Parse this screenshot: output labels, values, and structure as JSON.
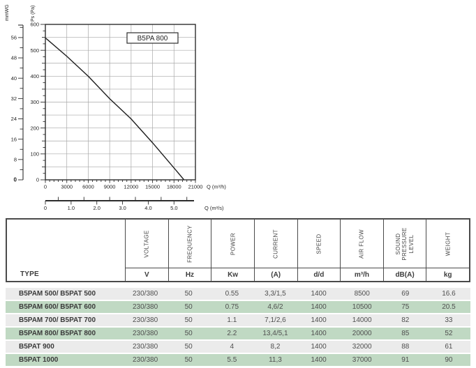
{
  "chart_data": {
    "type": "line",
    "title": "B5PA 800",
    "xlabel": "Q (m³/h)",
    "x2label": "Q (m³/s)",
    "ylabel": "Ps (Pa)",
    "y2label": "mmWG",
    "grid": true,
    "xlim": [
      0,
      21000
    ],
    "ylim": [
      0,
      600
    ],
    "x_tick_major": 3000,
    "x_tick_minor": 600,
    "y_label_step": 100,
    "y_grid_step": 50,
    "y_tick_minor": 25,
    "y2_ticks": [
      0,
      8,
      16,
      24,
      32,
      40,
      48,
      56
    ],
    "y2_tick_minor": 4,
    "y2_unit_in_pa": 9.80665,
    "x2_ticks": [
      "0",
      "1.0",
      "2.0",
      "3.0",
      "4.0",
      "5.0"
    ],
    "x2_half_ticks": [
      0.5,
      1.5,
      2.5,
      3.5,
      4.5,
      5.5
    ],
    "x2_factor": 3600,
    "series": [
      {
        "name": "B5PA 800",
        "points": [
          [
            0,
            548
          ],
          [
            3000,
            477
          ],
          [
            6000,
            400
          ],
          [
            9000,
            313
          ],
          [
            12000,
            235
          ],
          [
            15000,
            143
          ],
          [
            18000,
            46
          ],
          [
            19400,
            0
          ]
        ]
      }
    ]
  },
  "table": {
    "type_header": "TYPE",
    "columns": [
      {
        "key": "voltage",
        "label": "VOLTAGE",
        "unit": "V"
      },
      {
        "key": "frequency",
        "label": "FREQUENCY",
        "unit": "Hz"
      },
      {
        "key": "power",
        "label": "POWER",
        "unit": "Kw"
      },
      {
        "key": "current",
        "label": "CURRENT",
        "unit": "(A)"
      },
      {
        "key": "speed",
        "label": "SPEED",
        "unit": "d/d"
      },
      {
        "key": "air-flow",
        "label": "AIR FLOW",
        "unit": "m³/h"
      },
      {
        "key": "sound-pressure-level",
        "label": "SOUND PRESSURE LEVEL",
        "unit": "dB(A)"
      },
      {
        "key": "weight",
        "label": "WEIGHT",
        "unit": "kg"
      }
    ],
    "rows": [
      {
        "type": "B5PAM 500/ B5PAT 500",
        "values": [
          "230/380",
          "50",
          "0.55",
          "3,3/1,5",
          "1400",
          "8500",
          "69",
          "16.6"
        ]
      },
      {
        "type": "B5PAM 600/ B5PAT 600",
        "values": [
          "230/380",
          "50",
          "0.75",
          "4,6/2",
          "1400",
          "10500",
          "75",
          "20.5"
        ]
      },
      {
        "type": "B5PAM 700/ B5PAT 700",
        "values": [
          "230/380",
          "50",
          "1.1",
          "7,1/2,6",
          "1400",
          "14000",
          "82",
          "33"
        ]
      },
      {
        "type": "B5PAM 800/ B5PAT 800",
        "values": [
          "230/380",
          "50",
          "2.2",
          "13,4/5,1",
          "1400",
          "20000",
          "85",
          "52"
        ]
      },
      {
        "type": "B5PAT 900",
        "values": [
          "230/380",
          "50",
          "4",
          "8,2",
          "1400",
          "32000",
          "88",
          "61"
        ]
      },
      {
        "type": "B5PAT 1000",
        "values": [
          "230/380",
          "50",
          "5.5",
          "11,3",
          "1400",
          "37000",
          "91",
          "90"
        ]
      }
    ],
    "row_colors": {
      "odd": "#ebebeb",
      "even": "#c0d9c3"
    }
  },
  "colors": {
    "chart_line": "#1e1e1e",
    "grid_line": "#a8a8a8",
    "axis_ink": "#2d2d2d",
    "text_ink": "#1f1f1f",
    "table_border": "#4a4a4a"
  }
}
